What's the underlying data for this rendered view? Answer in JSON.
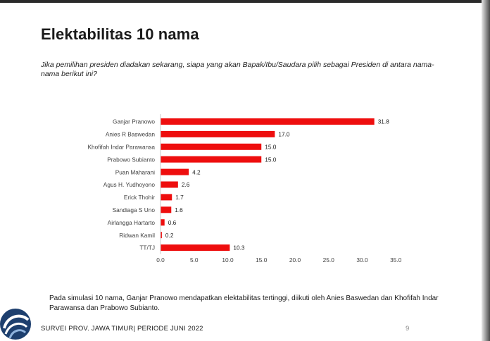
{
  "slide": {
    "title": "Elektabilitas 10 nama",
    "question": "Jika pemilihan presiden diadakan sekarang, siapa yang akan Bapak/Ibu/Saudara pilih sebagai Presiden di antara nama-nama berikut ini?",
    "summary": "Pada simulasi 10 nama, Ganjar Pranowo mendapatkan elektabilitas tertinggi, diikuti oleh Anies Baswedan dan Khofifah Indar Parawansa dan Prabowo Subianto.",
    "footer": "SURVEI PROV. JAWA TIMUR| PERIODE JUNI 2022",
    "page_number": "9"
  },
  "colors": {
    "bar": "#ee0e0e",
    "axis": "#c8c8c8",
    "text": "#404040"
  },
  "chart_data": {
    "type": "bar",
    "orientation": "horizontal",
    "title": "",
    "xlabel": "",
    "ylabel": "",
    "categories": [
      "Ganjar Pranowo",
      "Anies R Baswedan",
      "Khofifah Indar Parawansa",
      "Prabowo Subianto",
      "Puan Maharani",
      "Agus H. Yudhoyono",
      "Erick Thohir",
      "Sandiaga S Uno",
      "Airlangga Hartarto",
      "Ridwan Kamil",
      "TT/TJ"
    ],
    "values": [
      31.8,
      17.0,
      15.0,
      15.0,
      4.2,
      2.6,
      1.7,
      1.6,
      0.6,
      0.2,
      10.3
    ],
    "value_labels": [
      "31.8",
      "17.0",
      "15.0",
      "15.0",
      "4.2",
      "2.6",
      "1.7",
      "1.6",
      "0.6",
      "0.2",
      "10.3"
    ],
    "xlim": [
      0,
      35
    ],
    "xticks": [
      0,
      5,
      10,
      15,
      20,
      25,
      30,
      35
    ],
    "xtick_labels": [
      "0.0",
      "5.0",
      "10.0",
      "15.0",
      "20.0",
      "25.0",
      "30.0",
      "35.0"
    ],
    "grid": false,
    "legend": "none"
  }
}
